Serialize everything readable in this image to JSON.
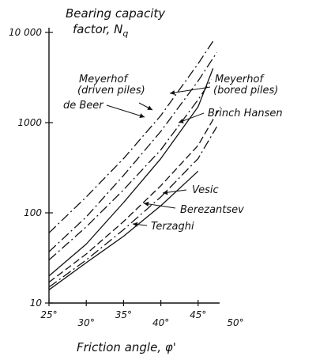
{
  "chart_data": {
    "type": "line",
    "ylabel": "Bearing capacity factor, N",
    "ylabel_line1": "Bearing capacity",
    "ylabel_line2": "factor, N",
    "ylabel_subscript": "q",
    "xlabel": "Friction angle, φ'",
    "x_ticks": [
      25,
      30,
      35,
      40,
      45,
      50
    ],
    "x_tick_labels": [
      "25°",
      "30°",
      "35°",
      "40°",
      "45°",
      "50°"
    ],
    "y_ticks": [
      10,
      100,
      1000,
      10000
    ],
    "y_tick_labels": [
      "10",
      "100",
      "1000",
      "10 000"
    ],
    "xlim": [
      25,
      50
    ],
    "ylim": [
      10,
      10000
    ],
    "y_scale": "log",
    "grid": false,
    "series": [
      {
        "name": "Meyerhof (driven piles)",
        "style": "dashdot",
        "x": [
          25,
          30,
          35,
          40,
          45,
          47
        ],
        "y": [
          60,
          150,
          400,
          1200,
          4500,
          8000
        ]
      },
      {
        "name": "de Beer",
        "style": "dashdot",
        "x": [
          25,
          30,
          35,
          40,
          45,
          47.5
        ],
        "y": [
          37,
          90,
          260,
          800,
          2900,
          6000
        ]
      },
      {
        "name": "Meyerhof (bored piles)",
        "style": "dashdot",
        "x": [
          25,
          30,
          35,
          40,
          45,
          46.8
        ],
        "y": [
          30,
          70,
          180,
          500,
          1800,
          3000
        ]
      },
      {
        "name": "Brinch Hansen",
        "style": "solid",
        "x": [
          25,
          30,
          35,
          40,
          45,
          47
        ],
        "y": [
          20,
          45,
          130,
          400,
          1500,
          4000
        ]
      },
      {
        "name": "Vesic",
        "style": "dashed",
        "x": [
          25,
          30,
          35,
          40,
          45,
          48
        ],
        "y": [
          17,
          35,
          80,
          200,
          560,
          1500
        ]
      },
      {
        "name": "Berezantsev",
        "style": "dashdot",
        "x": [
          25,
          30,
          35,
          40,
          45,
          47.5
        ],
        "y": [
          15,
          30,
          65,
          150,
          400,
          900
        ]
      },
      {
        "name": "Terzaghi",
        "style": "solid",
        "x": [
          25,
          30,
          35,
          40,
          45
        ],
        "y": [
          14,
          28,
          55,
          120,
          290
        ]
      }
    ],
    "annotations": [
      {
        "text": "Meyerhof",
        "text2": "(driven piles)",
        "series": 0
      },
      {
        "text": "de Beer",
        "series": 1
      },
      {
        "text": "Meyerhof",
        "text2": "(bored piles)",
        "series": 2
      },
      {
        "text": "Brinch Hansen",
        "series": 3
      },
      {
        "text": "Vesic",
        "series": 4
      },
      {
        "text": "Berezantsev",
        "series": 5
      },
      {
        "text": "Terzaghi",
        "series": 6
      }
    ]
  }
}
